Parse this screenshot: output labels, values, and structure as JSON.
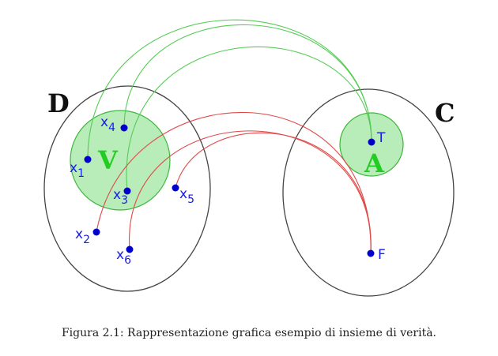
{
  "colors": {
    "outer_stroke": "#444444",
    "inner_fill": "#b8ecb8",
    "inner_stroke": "#3cb83c",
    "inner_label": "#22cc22",
    "true_arrow": "#55cc55",
    "false_arrow": "#e04a4a",
    "point": "#0000cc",
    "point_label": "#1a1aee",
    "set_label": "#111111"
  },
  "sets": {
    "domain": {
      "label": "D"
    },
    "codomain": {
      "label": "C"
    },
    "truth_set": {
      "label": "V"
    },
    "true_image": {
      "label": "A"
    }
  },
  "points": {
    "x1": {
      "base": "x",
      "sub": "1"
    },
    "x2": {
      "base": "x",
      "sub": "2"
    },
    "x3": {
      "base": "x",
      "sub": "3"
    },
    "x4": {
      "base": "x",
      "sub": "4"
    },
    "x5": {
      "base": "x",
      "sub": "5"
    },
    "x6": {
      "base": "x",
      "sub": "6"
    },
    "T": {
      "label": "T"
    },
    "F": {
      "label": "F"
    }
  },
  "mappings": [
    {
      "from": "x1",
      "to": "T"
    },
    {
      "from": "x3",
      "to": "T"
    },
    {
      "from": "x4",
      "to": "T"
    },
    {
      "from": "x2",
      "to": "F"
    },
    {
      "from": "x5",
      "to": "F"
    },
    {
      "from": "x6",
      "to": "F"
    }
  ],
  "caption": "Figura 2.1: Rappresentazione grafica esempio di insieme di verità."
}
